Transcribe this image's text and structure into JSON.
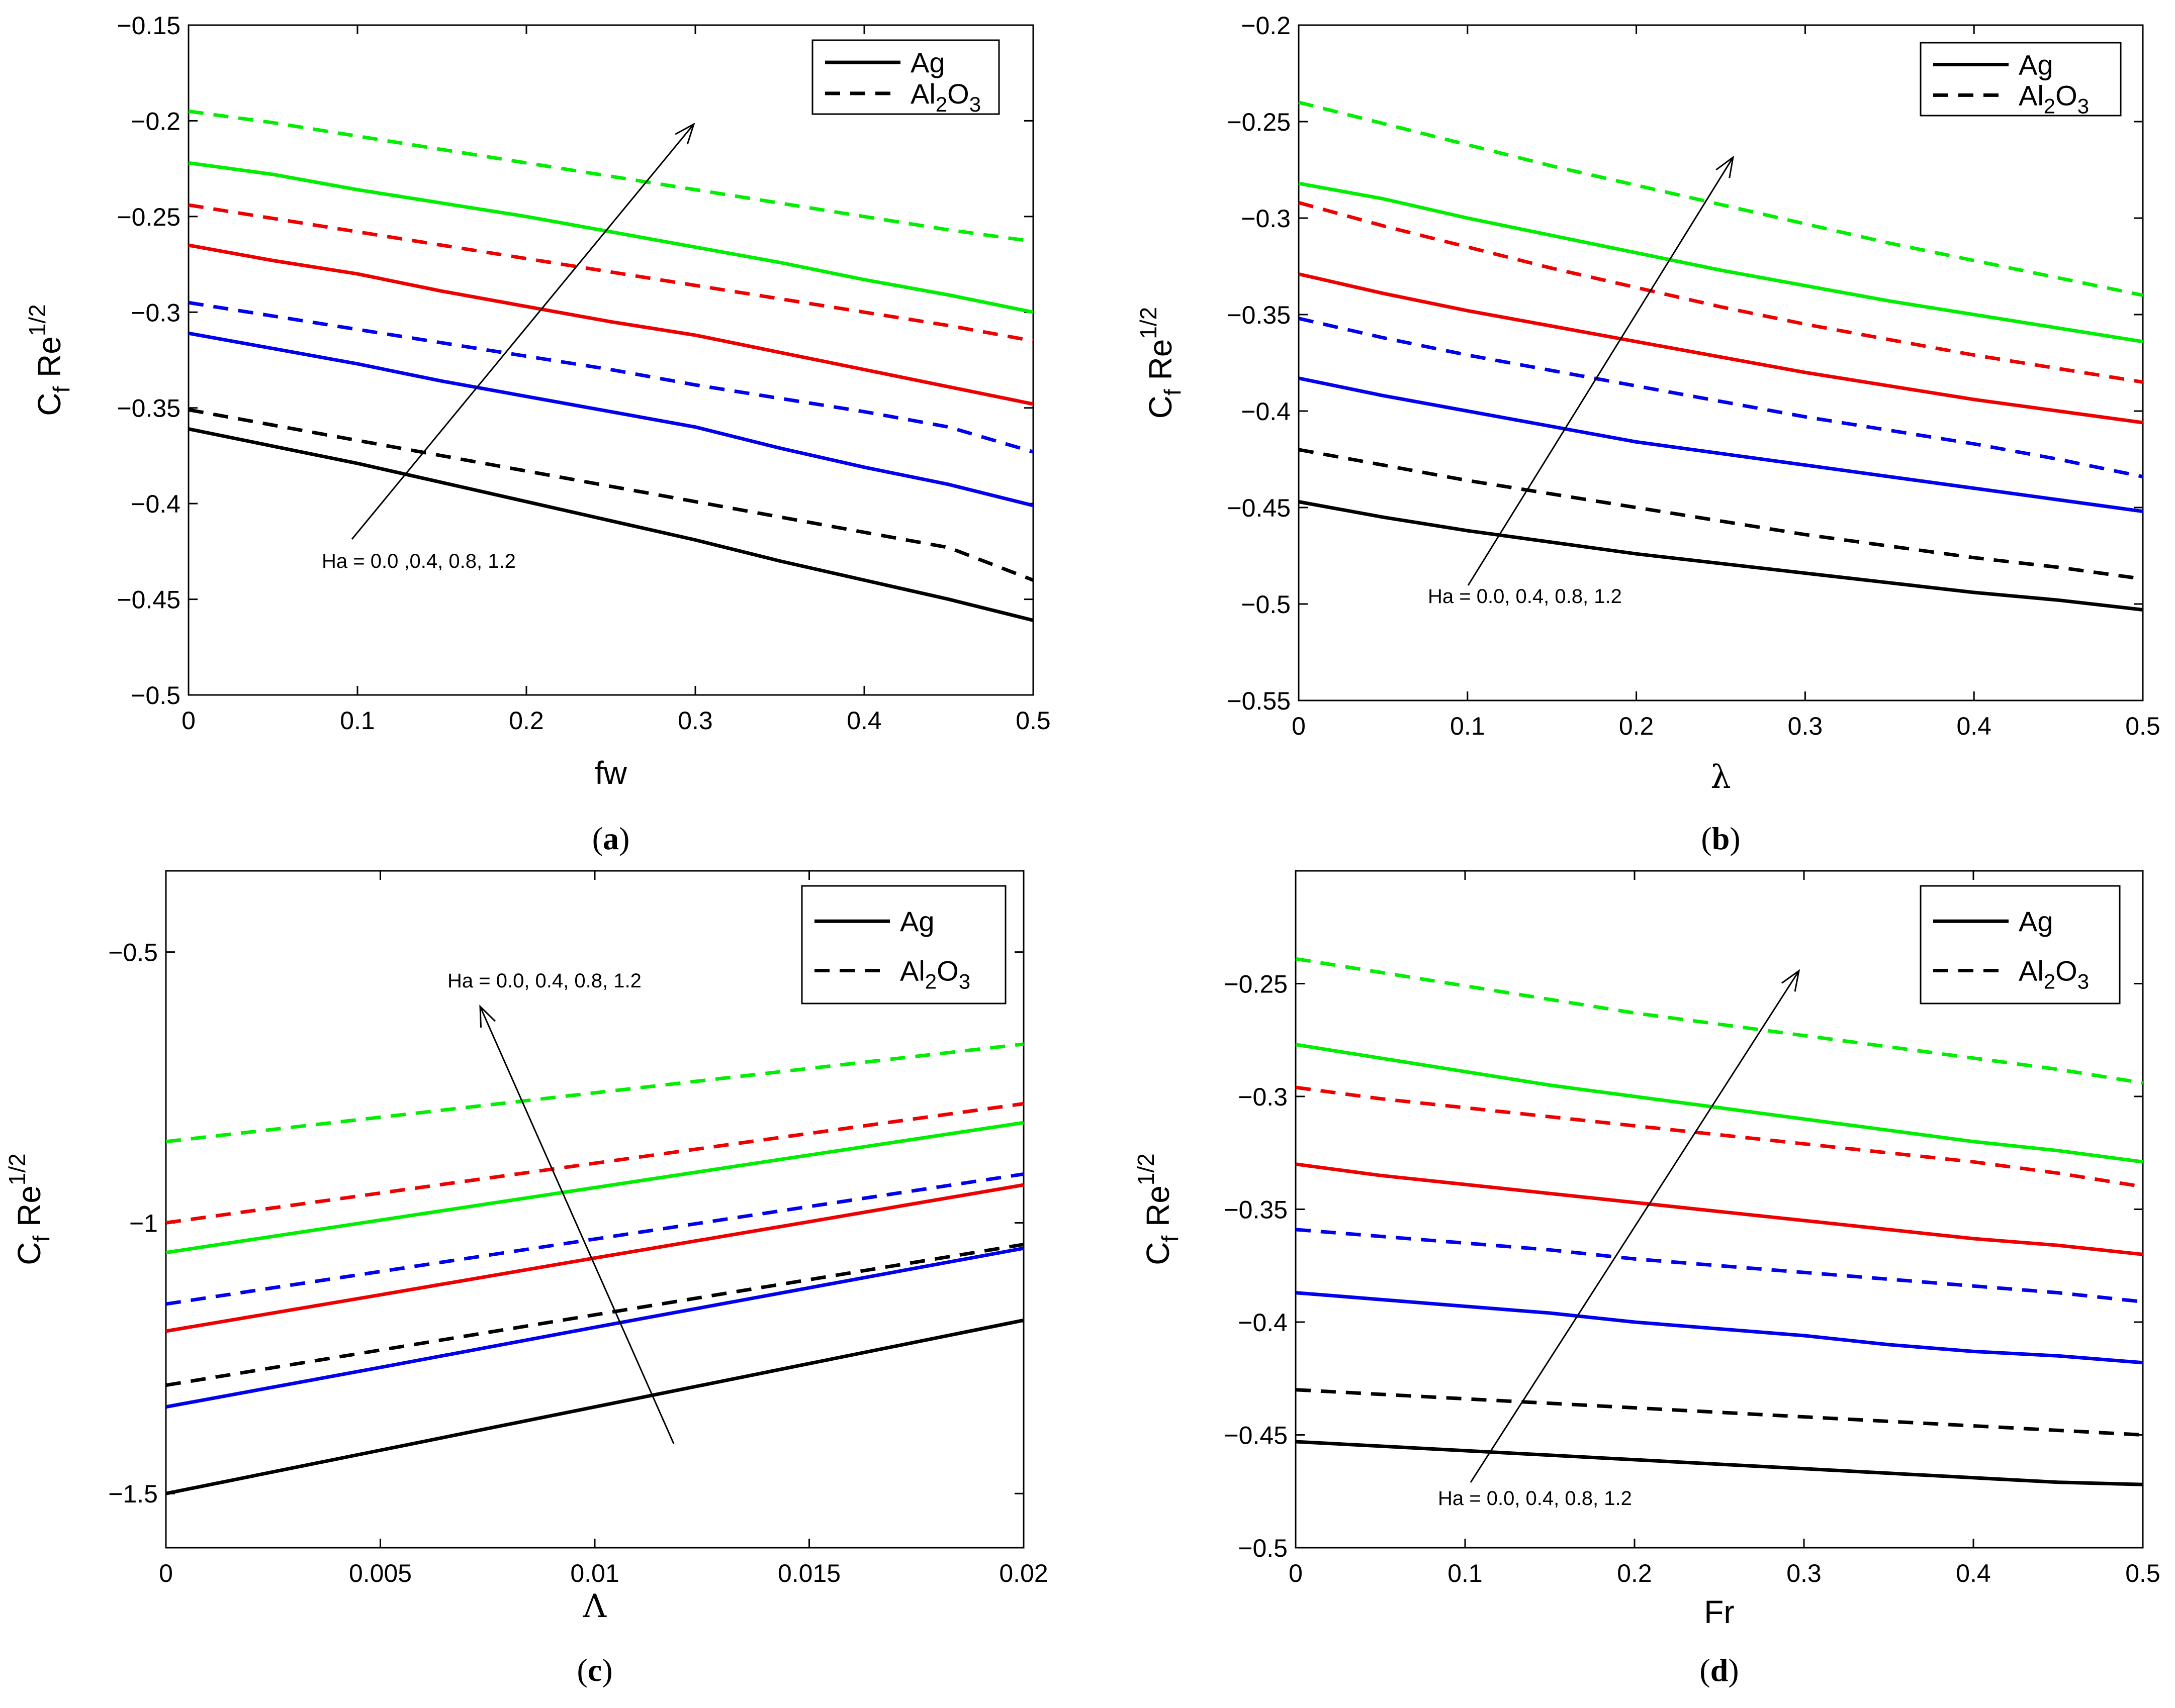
{
  "figure": {
    "colors": {
      "green": "#00ee00",
      "red": "#ee0000",
      "blue": "#0000ee",
      "black": "#000000"
    },
    "legend": {
      "solid_label": "Ag",
      "dashed_label": "Al2O3",
      "dashed_main": "Al",
      "dashed_sub1": "2",
      "dashed_mid": "O",
      "dashed_sub2": "3"
    },
    "ylabel": {
      "main": "C",
      "sub": "f",
      "mid": " Re",
      "sup": "1/2"
    }
  },
  "chart_data": [
    {
      "id": "a",
      "type": "line",
      "caption": {
        "open": "(",
        "letter": "a",
        "close": ")"
      },
      "xlabel": "fw",
      "xlim": [
        0,
        0.5
      ],
      "ylim": [
        -0.5,
        -0.15
      ],
      "xticks": [
        "0",
        "0.1",
        "0.2",
        "0.3",
        "0.4",
        "0.5"
      ],
      "yticks": [
        "−0.15",
        "−0.2",
        "−0.25",
        "−0.3",
        "−0.35",
        "−0.4",
        "−0.45",
        "−0.5"
      ],
      "annotation": "Ha = 0.0 ,0.4, 0.8, 1.2",
      "x": [
        0,
        0.05,
        0.1,
        0.15,
        0.2,
        0.25,
        0.3,
        0.35,
        0.4,
        0.45,
        0.5
      ],
      "series": [
        {
          "name": "Ag, Ha = 0.0",
          "color": "black",
          "style": "solid",
          "values": [
            -0.361,
            -0.37,
            -0.379,
            -0.389,
            -0.399,
            -0.409,
            -0.419,
            -0.43,
            -0.44,
            -0.45,
            -0.461
          ]
        },
        {
          "name": "Ag, Ha = 0.4",
          "color": "blue",
          "style": "solid",
          "values": [
            -0.311,
            -0.319,
            -0.327,
            -0.336,
            -0.344,
            -0.352,
            -0.36,
            -0.371,
            -0.381,
            -0.39,
            -0.401
          ]
        },
        {
          "name": "Ag, Ha = 0.8",
          "color": "red",
          "style": "solid",
          "values": [
            -0.265,
            -0.273,
            -0.28,
            -0.289,
            -0.297,
            -0.305,
            -0.312,
            -0.321,
            -0.33,
            -0.339,
            -0.348
          ]
        },
        {
          "name": "Ag, Ha = 1.2",
          "color": "green",
          "style": "solid",
          "values": [
            -0.222,
            -0.228,
            -0.236,
            -0.243,
            -0.25,
            -0.258,
            -0.266,
            -0.274,
            -0.283,
            -0.291,
            -0.3
          ]
        },
        {
          "name": "Al2O3, Ha = 0.0",
          "color": "black",
          "style": "dashed",
          "values": [
            -0.351,
            -0.359,
            -0.367,
            -0.375,
            -0.383,
            -0.391,
            -0.399,
            -0.407,
            -0.415,
            -0.423,
            -0.44
          ]
        },
        {
          "name": "Al2O3, Ha = 0.4",
          "color": "blue",
          "style": "dashed",
          "values": [
            -0.295,
            -0.302,
            -0.309,
            -0.316,
            -0.323,
            -0.33,
            -0.338,
            -0.345,
            -0.352,
            -0.36,
            -0.373
          ]
        },
        {
          "name": "Al2O3, Ha = 0.8",
          "color": "red",
          "style": "dashed",
          "values": [
            -0.244,
            -0.251,
            -0.258,
            -0.265,
            -0.272,
            -0.279,
            -0.286,
            -0.293,
            -0.3,
            -0.307,
            -0.315
          ]
        },
        {
          "name": "Al2O3, Ha = 1.2",
          "color": "green",
          "style": "dashed",
          "values": [
            -0.195,
            -0.201,
            -0.208,
            -0.215,
            -0.222,
            -0.229,
            -0.236,
            -0.243,
            -0.25,
            -0.257,
            -0.263
          ]
        }
      ]
    },
    {
      "id": "b",
      "type": "line",
      "caption": {
        "open": "(",
        "letter": "b",
        "close": ")"
      },
      "xlabel": "λ",
      "xlim": [
        0,
        0.5
      ],
      "ylim": [
        -0.55,
        -0.2
      ],
      "xticks": [
        "0",
        "0.1",
        "0.2",
        "0.3",
        "0.4",
        "0.5"
      ],
      "yticks": [
        "−0.2",
        "−0.25",
        "−0.3",
        "−0.35",
        "−0.4",
        "−0.45",
        "−0.5",
        "−0.55"
      ],
      "annotation": "Ha = 0.0, 0.4, 0.8, 1.2",
      "x": [
        0,
        0.05,
        0.1,
        0.15,
        0.2,
        0.25,
        0.3,
        0.35,
        0.4,
        0.45,
        0.5
      ],
      "series": [
        {
          "name": "Ag, Ha = 0.0",
          "color": "black",
          "style": "solid",
          "values": [
            -0.447,
            -0.455,
            -0.462,
            -0.468,
            -0.474,
            -0.479,
            -0.484,
            -0.489,
            -0.494,
            -0.498,
            -0.503
          ]
        },
        {
          "name": "Ag, Ha = 0.4",
          "color": "blue",
          "style": "solid",
          "values": [
            -0.383,
            -0.392,
            -0.4,
            -0.408,
            -0.416,
            -0.422,
            -0.428,
            -0.434,
            -0.44,
            -0.446,
            -0.452
          ]
        },
        {
          "name": "Ag, Ha = 0.8",
          "color": "red",
          "style": "solid",
          "values": [
            -0.329,
            -0.339,
            -0.348,
            -0.356,
            -0.364,
            -0.372,
            -0.38,
            -0.387,
            -0.394,
            -0.4,
            -0.406
          ]
        },
        {
          "name": "Ag, Ha = 1.2",
          "color": "green",
          "style": "solid",
          "values": [
            -0.282,
            -0.29,
            -0.3,
            -0.309,
            -0.318,
            -0.327,
            -0.335,
            -0.343,
            -0.35,
            -0.357,
            -0.364
          ]
        },
        {
          "name": "Al2O3, Ha = 0.0",
          "color": "black",
          "style": "dashed",
          "values": [
            -0.42,
            -0.428,
            -0.436,
            -0.443,
            -0.45,
            -0.457,
            -0.464,
            -0.47,
            -0.476,
            -0.481,
            -0.487
          ]
        },
        {
          "name": "Al2O3, Ha = 0.4",
          "color": "blue",
          "style": "dashed",
          "values": [
            -0.352,
            -0.362,
            -0.371,
            -0.379,
            -0.387,
            -0.395,
            -0.403,
            -0.41,
            -0.417,
            -0.425,
            -0.434
          ]
        },
        {
          "name": "Al2O3, Ha = 0.8",
          "color": "red",
          "style": "dashed",
          "values": [
            -0.292,
            -0.304,
            -0.315,
            -0.326,
            -0.336,
            -0.346,
            -0.355,
            -0.363,
            -0.371,
            -0.378,
            -0.385
          ]
        },
        {
          "name": "Al2O3, Ha = 1.2",
          "color": "green",
          "style": "dashed",
          "values": [
            -0.24,
            -0.251,
            -0.262,
            -0.273,
            -0.283,
            -0.293,
            -0.303,
            -0.313,
            -0.322,
            -0.331,
            -0.34
          ]
        }
      ]
    },
    {
      "id": "c",
      "type": "line",
      "caption": {
        "open": "(",
        "letter": "c",
        "close": ")"
      },
      "xlabel": "Λ",
      "xlim": [
        0,
        0.02
      ],
      "ylim": [
        -1.6,
        -0.35
      ],
      "yticks_at": [
        -0.5,
        -1,
        -1.5
      ],
      "xticks": [
        "0",
        "0.005",
        "0.01",
        "0.015",
        "0.02"
      ],
      "yticks": [
        "−0.5",
        "−1",
        "−1.5"
      ],
      "annotation": "Ha = 0.0, 0.4, 0.8, 1.2",
      "x": [
        0,
        0.005,
        0.01,
        0.015,
        0.02
      ],
      "series": [
        {
          "name": "Ag, Ha = 0.0",
          "color": "black",
          "style": "solid",
          "values": [
            -1.5,
            -1.42,
            -1.34,
            -1.26,
            -1.18
          ]
        },
        {
          "name": "Ag, Ha = 0.4",
          "color": "blue",
          "style": "solid",
          "values": [
            -1.34,
            -1.267,
            -1.193,
            -1.12,
            -1.047
          ]
        },
        {
          "name": "Ag, Ha = 0.8",
          "color": "red",
          "style": "solid",
          "values": [
            -1.2,
            -1.133,
            -1.065,
            -0.998,
            -0.93
          ]
        },
        {
          "name": "Ag, Ha = 1.2",
          "color": "green",
          "style": "solid",
          "values": [
            -1.055,
            -0.995,
            -0.935,
            -0.875,
            -0.815
          ]
        },
        {
          "name": "Al2O3, Ha = 0.0",
          "color": "black",
          "style": "dashed",
          "values": [
            -1.3,
            -1.235,
            -1.17,
            -1.105,
            -1.04
          ]
        },
        {
          "name": "Al2O3, Ha = 0.4",
          "color": "blue",
          "style": "dashed",
          "values": [
            -1.15,
            -1.09,
            -1.03,
            -0.97,
            -0.91
          ]
        },
        {
          "name": "Al2O3, Ha = 0.8",
          "color": "red",
          "style": "dashed",
          "values": [
            -1.0,
            -0.945,
            -0.89,
            -0.835,
            -0.78
          ]
        },
        {
          "name": "Al2O3, Ha = 1.2",
          "color": "green",
          "style": "dashed",
          "values": [
            -0.85,
            -0.805,
            -0.76,
            -0.715,
            -0.67
          ]
        }
      ]
    },
    {
      "id": "d",
      "type": "line",
      "caption": {
        "open": "(",
        "letter": "d",
        "close": ")"
      },
      "xlabel": "Fr",
      "xlim": [
        0,
        0.5
      ],
      "ylim": [
        -0.5,
        -0.2
      ],
      "yticks_at": [
        -0.25,
        -0.3,
        -0.35,
        -0.4,
        -0.45,
        -0.5
      ],
      "xticks": [
        "0",
        "0.1",
        "0.2",
        "0.3",
        "0.4",
        "0.5"
      ],
      "yticks": [
        "−0.25",
        "−0.3",
        "−0.35",
        "−0.4",
        "−0.45",
        "−0.5"
      ],
      "annotation": "Ha = 0.0, 0.4, 0.8, 1.2",
      "x": [
        0,
        0.05,
        0.1,
        0.15,
        0.2,
        0.25,
        0.3,
        0.35,
        0.4,
        0.45,
        0.5
      ],
      "series": [
        {
          "name": "Ag, Ha = 0.0",
          "color": "black",
          "style": "solid",
          "values": [
            -0.453,
            -0.455,
            -0.457,
            -0.459,
            -0.461,
            -0.463,
            -0.465,
            -0.467,
            -0.469,
            -0.471,
            -0.472
          ]
        },
        {
          "name": "Ag, Ha = 0.4",
          "color": "blue",
          "style": "solid",
          "values": [
            -0.387,
            -0.39,
            -0.393,
            -0.396,
            -0.4,
            -0.403,
            -0.406,
            -0.41,
            -0.413,
            -0.415,
            -0.418
          ]
        },
        {
          "name": "Ag, Ha = 0.8",
          "color": "red",
          "style": "solid",
          "values": [
            -0.33,
            -0.335,
            -0.339,
            -0.343,
            -0.347,
            -0.351,
            -0.355,
            -0.359,
            -0.363,
            -0.366,
            -0.37
          ]
        },
        {
          "name": "Ag, Ha = 1.2",
          "color": "green",
          "style": "solid",
          "values": [
            -0.277,
            -0.283,
            -0.289,
            -0.295,
            -0.3,
            -0.305,
            -0.31,
            -0.315,
            -0.32,
            -0.324,
            -0.329
          ]
        },
        {
          "name": "Al2O3, Ha = 0.0",
          "color": "black",
          "style": "dashed",
          "values": [
            -0.43,
            -0.432,
            -0.434,
            -0.436,
            -0.438,
            -0.44,
            -0.442,
            -0.444,
            -0.446,
            -0.448,
            -0.45
          ]
        },
        {
          "name": "Al2O3, Ha = 0.4",
          "color": "blue",
          "style": "dashed",
          "values": [
            -0.359,
            -0.362,
            -0.365,
            -0.368,
            -0.372,
            -0.375,
            -0.378,
            -0.381,
            -0.384,
            -0.387,
            -0.391
          ]
        },
        {
          "name": "Al2O3, Ha = 0.8",
          "color": "red",
          "style": "dashed",
          "values": [
            -0.296,
            -0.301,
            -0.305,
            -0.309,
            -0.313,
            -0.317,
            -0.321,
            -0.325,
            -0.329,
            -0.334,
            -0.34
          ]
        },
        {
          "name": "Al2O3, Ha = 1.2",
          "color": "green",
          "style": "dashed",
          "values": [
            -0.239,
            -0.245,
            -0.251,
            -0.257,
            -0.263,
            -0.268,
            -0.273,
            -0.278,
            -0.283,
            -0.288,
            -0.294
          ]
        }
      ]
    }
  ]
}
